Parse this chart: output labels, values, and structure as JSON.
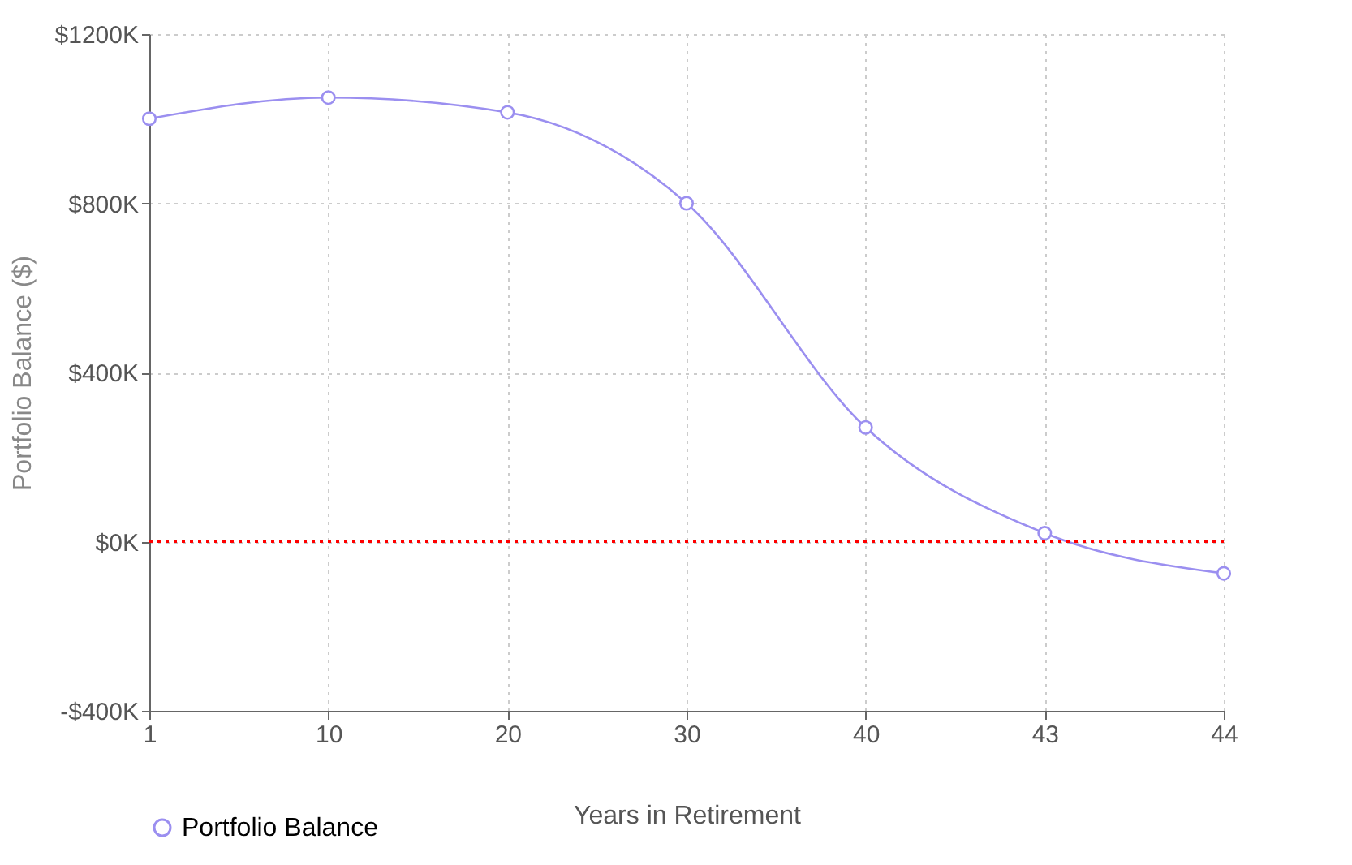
{
  "chart_data": {
    "type": "line",
    "xlabel": "Years in Retirement",
    "ylabel": "Portfolio Balance ($)",
    "categories": [
      "1",
      "10",
      "20",
      "30",
      "40",
      "43",
      "44"
    ],
    "series": [
      {
        "name": "Portfolio Balance",
        "color": "#9b8ff0",
        "values": [
          1000,
          1050,
          1015,
          800,
          270,
          20,
          -75
        ]
      }
    ],
    "ylim": [
      -400,
      1200
    ],
    "yticks": [
      {
        "value": -400,
        "label": "-$400K"
      },
      {
        "value": 0,
        "label": "$0K"
      },
      {
        "value": 400,
        "label": "$400K"
      },
      {
        "value": 800,
        "label": "$800K"
      },
      {
        "value": 1200,
        "label": "$1200K"
      }
    ],
    "ref_lines": [
      {
        "axis": "y",
        "value": 0,
        "color": "#ff0000",
        "line_style": "dotted"
      }
    ],
    "grid": true,
    "legend": "bottom",
    "marker": "circle",
    "line_style": "solid"
  }
}
